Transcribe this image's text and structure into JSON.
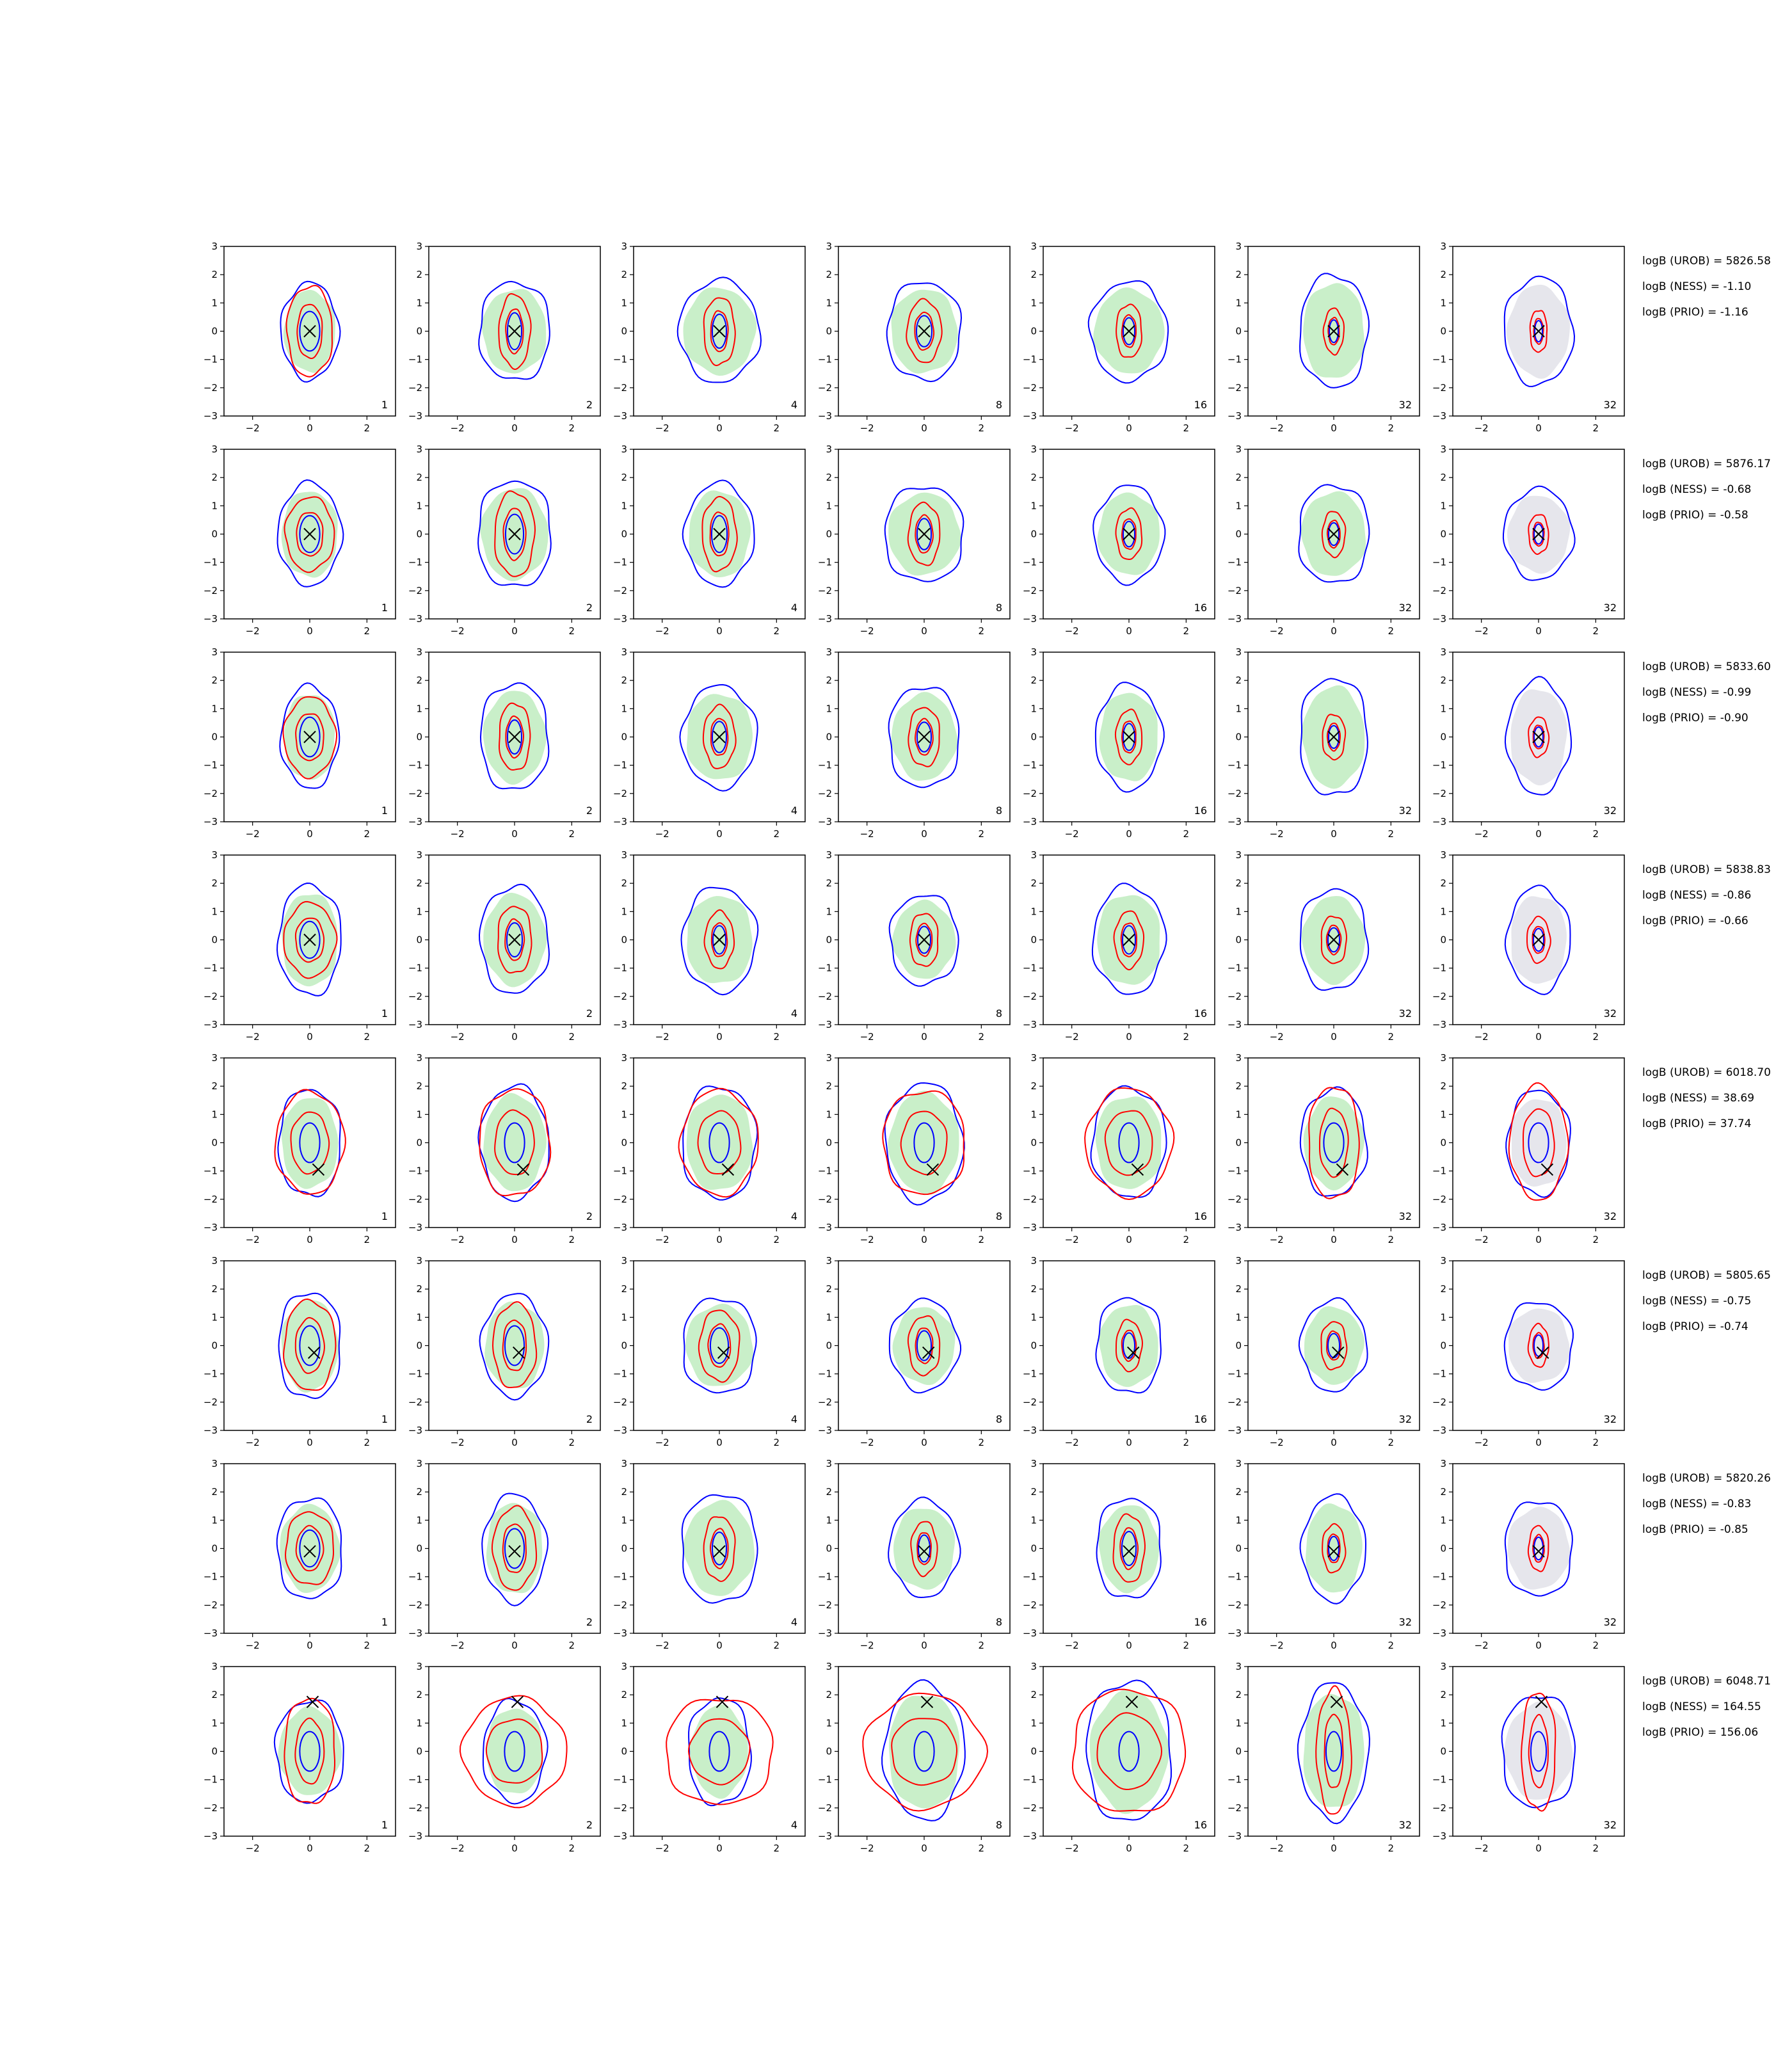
{
  "chart_data": {
    "type": "contour",
    "grid": {
      "rows": 8,
      "cols": 7
    },
    "axes": {
      "xlim": [
        -3,
        3
      ],
      "ylim": [
        -3,
        3
      ],
      "xticks": [
        -2,
        0,
        2
      ],
      "yticks": [
        -3,
        -2,
        -1,
        0,
        1,
        2,
        3
      ],
      "grid": false
    },
    "xlabel": "",
    "ylabel": "",
    "column_corner_labels": [
      "1",
      "2",
      "4",
      "8",
      "16",
      "32",
      "32"
    ],
    "colors": {
      "outer_contour": "#0000ff",
      "inner_contour": "#ff0000",
      "fill_main": "#c9efc9",
      "fill_last": "#e6e6ec",
      "marker": "#000000"
    },
    "rows": [
      {
        "marker": [
          0.0,
          0.0
        ],
        "labels": [
          "logB (UROB) = 5826.58",
          "logB (NESS) = -1.10",
          "logB (PRIO) = -1.16"
        ],
        "outer_width": [
          1.0,
          1.25,
          1.4,
          1.3,
          1.35,
          1.2,
          1.2
        ],
        "outer_height": [
          1.7,
          1.75,
          1.8,
          1.75,
          1.75,
          2.0,
          1.9
        ],
        "inner_width": [
          0.8,
          0.55,
          0.55,
          0.6,
          0.45,
          0.35,
          0.3
        ],
        "inner_height": [
          1.6,
          1.3,
          1.2,
          1.1,
          0.95,
          0.8,
          0.75
        ]
      },
      {
        "marker": [
          0.0,
          0.0
        ],
        "labels": [
          "logB (UROB) = 5876.17",
          "logB (NESS) = -0.68",
          "logB (PRIO) = -0.58"
        ],
        "outer_width": [
          1.1,
          1.3,
          1.2,
          1.4,
          1.2,
          1.25,
          1.2
        ],
        "outer_height": [
          1.8,
          1.9,
          1.8,
          1.7,
          1.7,
          1.75,
          1.6
        ],
        "inner_width": [
          0.85,
          0.7,
          0.6,
          0.55,
          0.45,
          0.4,
          0.35
        ],
        "inner_height": [
          1.3,
          1.5,
          1.3,
          1.1,
          0.9,
          0.8,
          0.7
        ]
      },
      {
        "marker": [
          0.0,
          0.0
        ],
        "labels": [
          "logB (UROB) = 5833.60",
          "logB (NESS) = -0.99",
          "logB (PRIO) = -0.90"
        ],
        "outer_width": [
          1.0,
          1.2,
          1.3,
          1.25,
          1.15,
          1.2,
          1.1
        ],
        "outer_height": [
          1.8,
          1.9,
          1.8,
          1.8,
          1.85,
          2.1,
          2.0
        ],
        "inner_width": [
          0.9,
          0.55,
          0.55,
          0.55,
          0.45,
          0.4,
          0.35
        ],
        "inner_height": [
          1.4,
          1.2,
          1.1,
          1.05,
          0.95,
          0.8,
          0.7
        ]
      },
      {
        "marker": [
          0.0,
          0.0
        ],
        "labels": [
          "logB (UROB) = 5838.83",
          "logB (NESS) = -0.86",
          "logB (PRIO) = -0.66"
        ],
        "outer_width": [
          1.1,
          1.2,
          1.3,
          1.2,
          1.25,
          1.2,
          1.1
        ],
        "outer_height": [
          1.95,
          1.9,
          1.85,
          1.6,
          1.9,
          1.8,
          1.85
        ],
        "inner_width": [
          0.9,
          0.6,
          0.5,
          0.5,
          0.5,
          0.45,
          0.4
        ],
        "inner_height": [
          1.3,
          1.2,
          1.0,
          0.95,
          1.0,
          0.85,
          0.8
        ]
      },
      {
        "marker": [
          0.3,
          -0.95
        ],
        "labels": [
          "logB (UROB) = 6018.70",
          "logB (NESS) = 38.69",
          "logB (PRIO) = 37.74"
        ],
        "outer_width": [
          1.1,
          1.2,
          1.3,
          1.35,
          1.3,
          1.15,
          1.1
        ],
        "outer_height": [
          1.9,
          2.0,
          2.0,
          2.1,
          1.95,
          1.9,
          1.85
        ],
        "inner_width": [
          1.2,
          1.25,
          1.35,
          1.45,
          1.5,
          0.9,
          1.0
        ],
        "inner_height": [
          1.8,
          1.9,
          1.85,
          1.85,
          1.9,
          2.0,
          2.0
        ]
      },
      {
        "marker": [
          0.15,
          -0.25
        ],
        "labels": [
          "logB (UROB) = 5805.65",
          "logB (NESS) = -0.75",
          "logB (PRIO) = -0.74"
        ],
        "outer_width": [
          1.1,
          1.15,
          1.3,
          1.2,
          1.15,
          1.15,
          1.2
        ],
        "outer_height": [
          1.9,
          1.8,
          1.7,
          1.6,
          1.7,
          1.6,
          1.55
        ],
        "inner_width": [
          0.9,
          0.75,
          0.7,
          0.55,
          0.45,
          0.45,
          0.35
        ],
        "inner_height": [
          1.6,
          1.5,
          1.25,
          1.05,
          0.9,
          0.85,
          0.75
        ]
      },
      {
        "marker": [
          0.0,
          -0.1
        ],
        "labels": [
          "logB (UROB) = 5820.26",
          "logB (NESS) = -0.83",
          "logB (PRIO) = -0.85"
        ],
        "outer_width": [
          1.15,
          1.1,
          1.35,
          1.2,
          1.15,
          1.1,
          1.2
        ],
        "outer_height": [
          1.8,
          1.9,
          1.95,
          1.7,
          1.8,
          1.85,
          1.7
        ],
        "inner_width": [
          0.85,
          0.75,
          0.55,
          0.45,
          0.55,
          0.4,
          0.35
        ],
        "inner_height": [
          1.3,
          1.45,
          1.15,
          0.95,
          1.2,
          0.85,
          0.8
        ]
      },
      {
        "marker": [
          0.1,
          1.75
        ],
        "labels": [
          "logB (UROB) = 6048.71",
          "logB (NESS) = 164.55",
          "logB (PRIO) = 156.06"
        ],
        "outer_width": [
          1.2,
          1.1,
          1.1,
          1.4,
          1.5,
          1.2,
          1.3
        ],
        "outer_height": [
          1.8,
          1.8,
          1.9,
          2.4,
          2.5,
          2.4,
          2.0
        ],
        "inner_width": [
          0.9,
          1.8,
          1.9,
          2.1,
          2.0,
          0.6,
          0.6
        ],
        "inner_height": [
          1.9,
          1.9,
          1.9,
          2.0,
          2.2,
          2.2,
          2.1
        ]
      }
    ]
  }
}
